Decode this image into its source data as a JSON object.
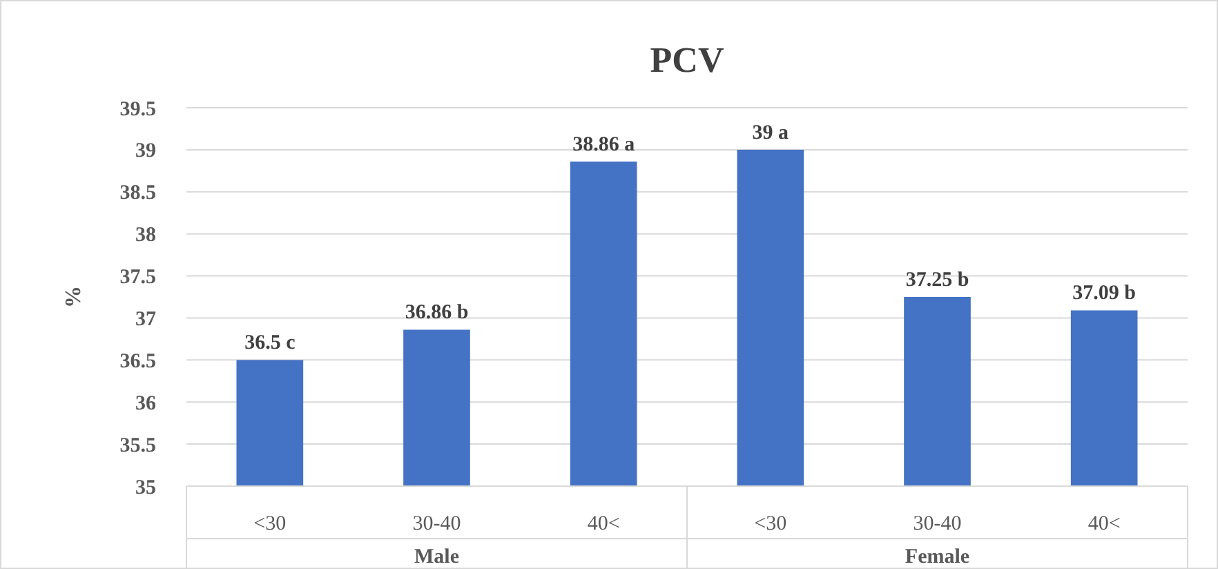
{
  "chart_data": {
    "type": "bar",
    "title": "PCV",
    "ylabel": "%",
    "categories": [
      "<30",
      "30-40",
      "40<",
      "<30",
      "30-40",
      "40<"
    ],
    "values": [
      36.5,
      36.86,
      38.86,
      39,
      37.25,
      37.09
    ],
    "value_labels": [
      "36.5 c",
      "36.86 b",
      "38.86 a",
      "39 a",
      "37.25 b",
      "37.09 b"
    ],
    "color": "#4472c4",
    "ylim": [
      35,
      39.5
    ],
    "yticks": [
      35,
      35.5,
      36,
      36.5,
      37,
      37.5,
      38,
      38.5,
      39,
      39.5
    ],
    "grid": "y",
    "annotations": [
      "Male",
      "Female"
    ]
  }
}
